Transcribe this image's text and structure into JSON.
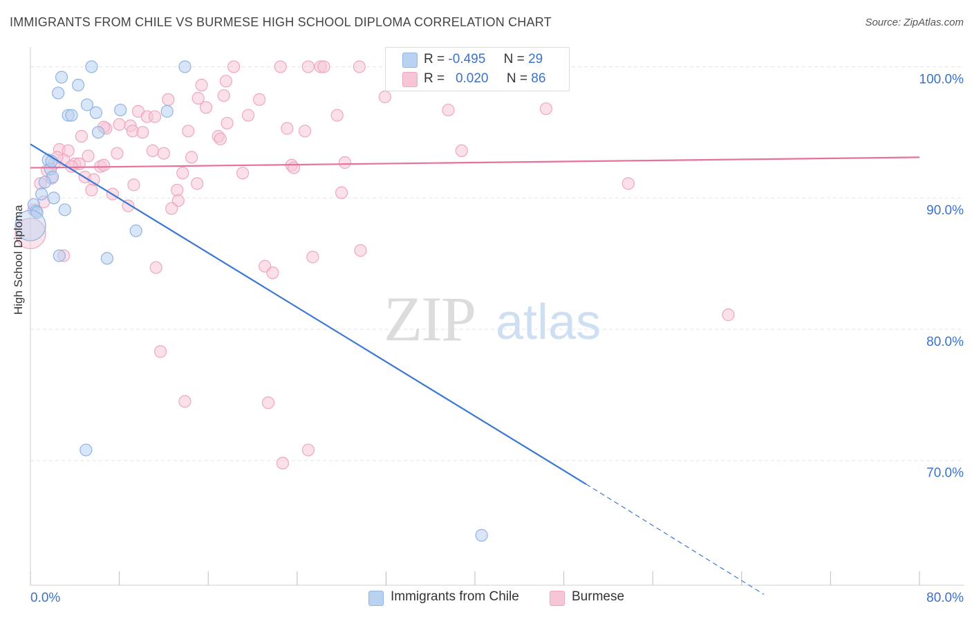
{
  "title": "IMMIGRANTS FROM CHILE VS BURMESE HIGH SCHOOL DIPLOMA CORRELATION CHART",
  "source": "Source: ZipAtlas.com",
  "watermark": {
    "zip": "ZIP",
    "atlas": "atlas"
  },
  "colors": {
    "blue": "#3a78d0",
    "blue_fill": "#b9d2f1",
    "blue_stroke": "#8fb3e3",
    "pink": "#e8709a",
    "pink_fill": "#f6c6d6",
    "pink_stroke": "#efa6bf",
    "grid": "#e6e6e6",
    "tick_text": "#3a72c8"
  },
  "legend": {
    "r_label": "R =",
    "n_label": "N =",
    "rows": [
      {
        "r": "-0.495",
        "n": "29"
      },
      {
        "r": "0.020",
        "n": "86"
      }
    ]
  },
  "chart_data": {
    "type": "scatter",
    "title": "IMMIGRANTS FROM CHILE VS BURMESE HIGH SCHOOL DIPLOMA CORRELATION CHART",
    "xlabel": "",
    "ylabel": "High School Diploma",
    "xlim": [
      0,
      80
    ],
    "ylim": [
      60.5,
      101.5
    ],
    "x_tick_labels": [
      "0.0%",
      "80.0%"
    ],
    "y_ticks": [
      70,
      80,
      90,
      100
    ],
    "y_tick_labels": [
      "70.0%",
      "80.0%",
      "90.0%",
      "100.0%"
    ],
    "grid": true,
    "legend_position": "top-center",
    "series": [
      {
        "name": "Immigrants from Chile",
        "r": -0.495,
        "n": 29,
        "points": [
          [
            5.5,
            100
          ],
          [
            13.9,
            100
          ],
          [
            2.8,
            99.2
          ],
          [
            4.3,
            98.6
          ],
          [
            2.5,
            98.0
          ],
          [
            5.1,
            97.1
          ],
          [
            8.1,
            96.7
          ],
          [
            5.9,
            96.5
          ],
          [
            3.4,
            96.3
          ],
          [
            3.7,
            96.3
          ],
          [
            12.3,
            96.6
          ],
          [
            6.1,
            95.0
          ],
          [
            1.6,
            92.9
          ],
          [
            1.8,
            92.2
          ],
          [
            1.9,
            92.8
          ],
          [
            2.0,
            91.6
          ],
          [
            1.3,
            91.2
          ],
          [
            1.0,
            90.3
          ],
          [
            2.1,
            90.0
          ],
          [
            0.3,
            89.5
          ],
          [
            0.5,
            89.0
          ],
          [
            0.6,
            88.9
          ],
          [
            3.1,
            89.1
          ],
          [
            9.5,
            87.5
          ],
          [
            0.0,
            87.9
          ],
          [
            2.6,
            85.6
          ],
          [
            6.9,
            85.4
          ],
          [
            5.0,
            70.8
          ],
          [
            40.6,
            64.3
          ]
        ],
        "trend": {
          "x0": 0,
          "y0": 94.1,
          "x1": 50,
          "y1": 68.2,
          "dash_to_x": 66,
          "dash_to_y": 59.8
        }
      },
      {
        "name": "Burmese",
        "r": 0.02,
        "n": 86,
        "points": [
          [
            18.3,
            100
          ],
          [
            22.5,
            100
          ],
          [
            25.0,
            100
          ],
          [
            26.1,
            100
          ],
          [
            26.4,
            100
          ],
          [
            29.6,
            100
          ],
          [
            32.5,
            100
          ],
          [
            17.6,
            98.9
          ],
          [
            15.4,
            98.6
          ],
          [
            17.4,
            97.8
          ],
          [
            15.1,
            97.6
          ],
          [
            12.4,
            97.5
          ],
          [
            20.6,
            97.5
          ],
          [
            31.9,
            97.7
          ],
          [
            15.8,
            96.9
          ],
          [
            9.7,
            96.6
          ],
          [
            37.6,
            96.7
          ],
          [
            46.4,
            96.8
          ],
          [
            27.6,
            96.3
          ],
          [
            10.5,
            96.2
          ],
          [
            11.2,
            96.2
          ],
          [
            19.6,
            96.3
          ],
          [
            17.7,
            95.7
          ],
          [
            8.0,
            95.6
          ],
          [
            6.8,
            95.3
          ],
          [
            6.6,
            95.4
          ],
          [
            9.0,
            95.5
          ],
          [
            9.2,
            95.1
          ],
          [
            10.1,
            95.0
          ],
          [
            14.2,
            95.1
          ],
          [
            23.1,
            95.3
          ],
          [
            24.7,
            95.1
          ],
          [
            4.6,
            94.7
          ],
          [
            16.9,
            94.7
          ],
          [
            17.1,
            94.5
          ],
          [
            2.6,
            93.7
          ],
          [
            3.4,
            93.6
          ],
          [
            11.0,
            93.6
          ],
          [
            12.0,
            93.4
          ],
          [
            7.8,
            93.4
          ],
          [
            14.5,
            93.1
          ],
          [
            5.2,
            93.2
          ],
          [
            3.0,
            92.9
          ],
          [
            2.1,
            92.6
          ],
          [
            4.0,
            92.6
          ],
          [
            4.4,
            92.6
          ],
          [
            3.7,
            92.4
          ],
          [
            6.3,
            92.4
          ],
          [
            6.6,
            92.5
          ],
          [
            23.5,
            92.5
          ],
          [
            23.7,
            92.3
          ],
          [
            28.3,
            92.7
          ],
          [
            38.8,
            93.6
          ],
          [
            13.7,
            91.9
          ],
          [
            19.1,
            91.9
          ],
          [
            1.5,
            92.1
          ],
          [
            1.9,
            91.5
          ],
          [
            4.9,
            91.6
          ],
          [
            5.7,
            91.4
          ],
          [
            0.9,
            91.1
          ],
          [
            9.3,
            91.0
          ],
          [
            15.0,
            91.1
          ],
          [
            13.2,
            90.6
          ],
          [
            5.5,
            90.6
          ],
          [
            7.4,
            90.3
          ],
          [
            28.0,
            90.4
          ],
          [
            53.8,
            91.1
          ],
          [
            1.2,
            89.7
          ],
          [
            8.8,
            89.4
          ],
          [
            13.3,
            89.8
          ],
          [
            12.7,
            89.2
          ],
          [
            0.0,
            87.3
          ],
          [
            3.0,
            85.6
          ],
          [
            25.4,
            85.5
          ],
          [
            29.7,
            86.0
          ],
          [
            11.3,
            84.7
          ],
          [
            21.1,
            84.8
          ],
          [
            62.8,
            81.1
          ],
          [
            11.7,
            78.3
          ],
          [
            13.9,
            74.5
          ],
          [
            21.4,
            74.4
          ],
          [
            25.0,
            70.8
          ],
          [
            22.7,
            69.8
          ],
          [
            0.3,
            89.1
          ],
          [
            21.8,
            84.3
          ],
          [
            2.4,
            93.1
          ]
        ],
        "trend": {
          "x0": 0,
          "y0": 92.3,
          "x1": 80,
          "y1": 93.1
        }
      }
    ]
  }
}
